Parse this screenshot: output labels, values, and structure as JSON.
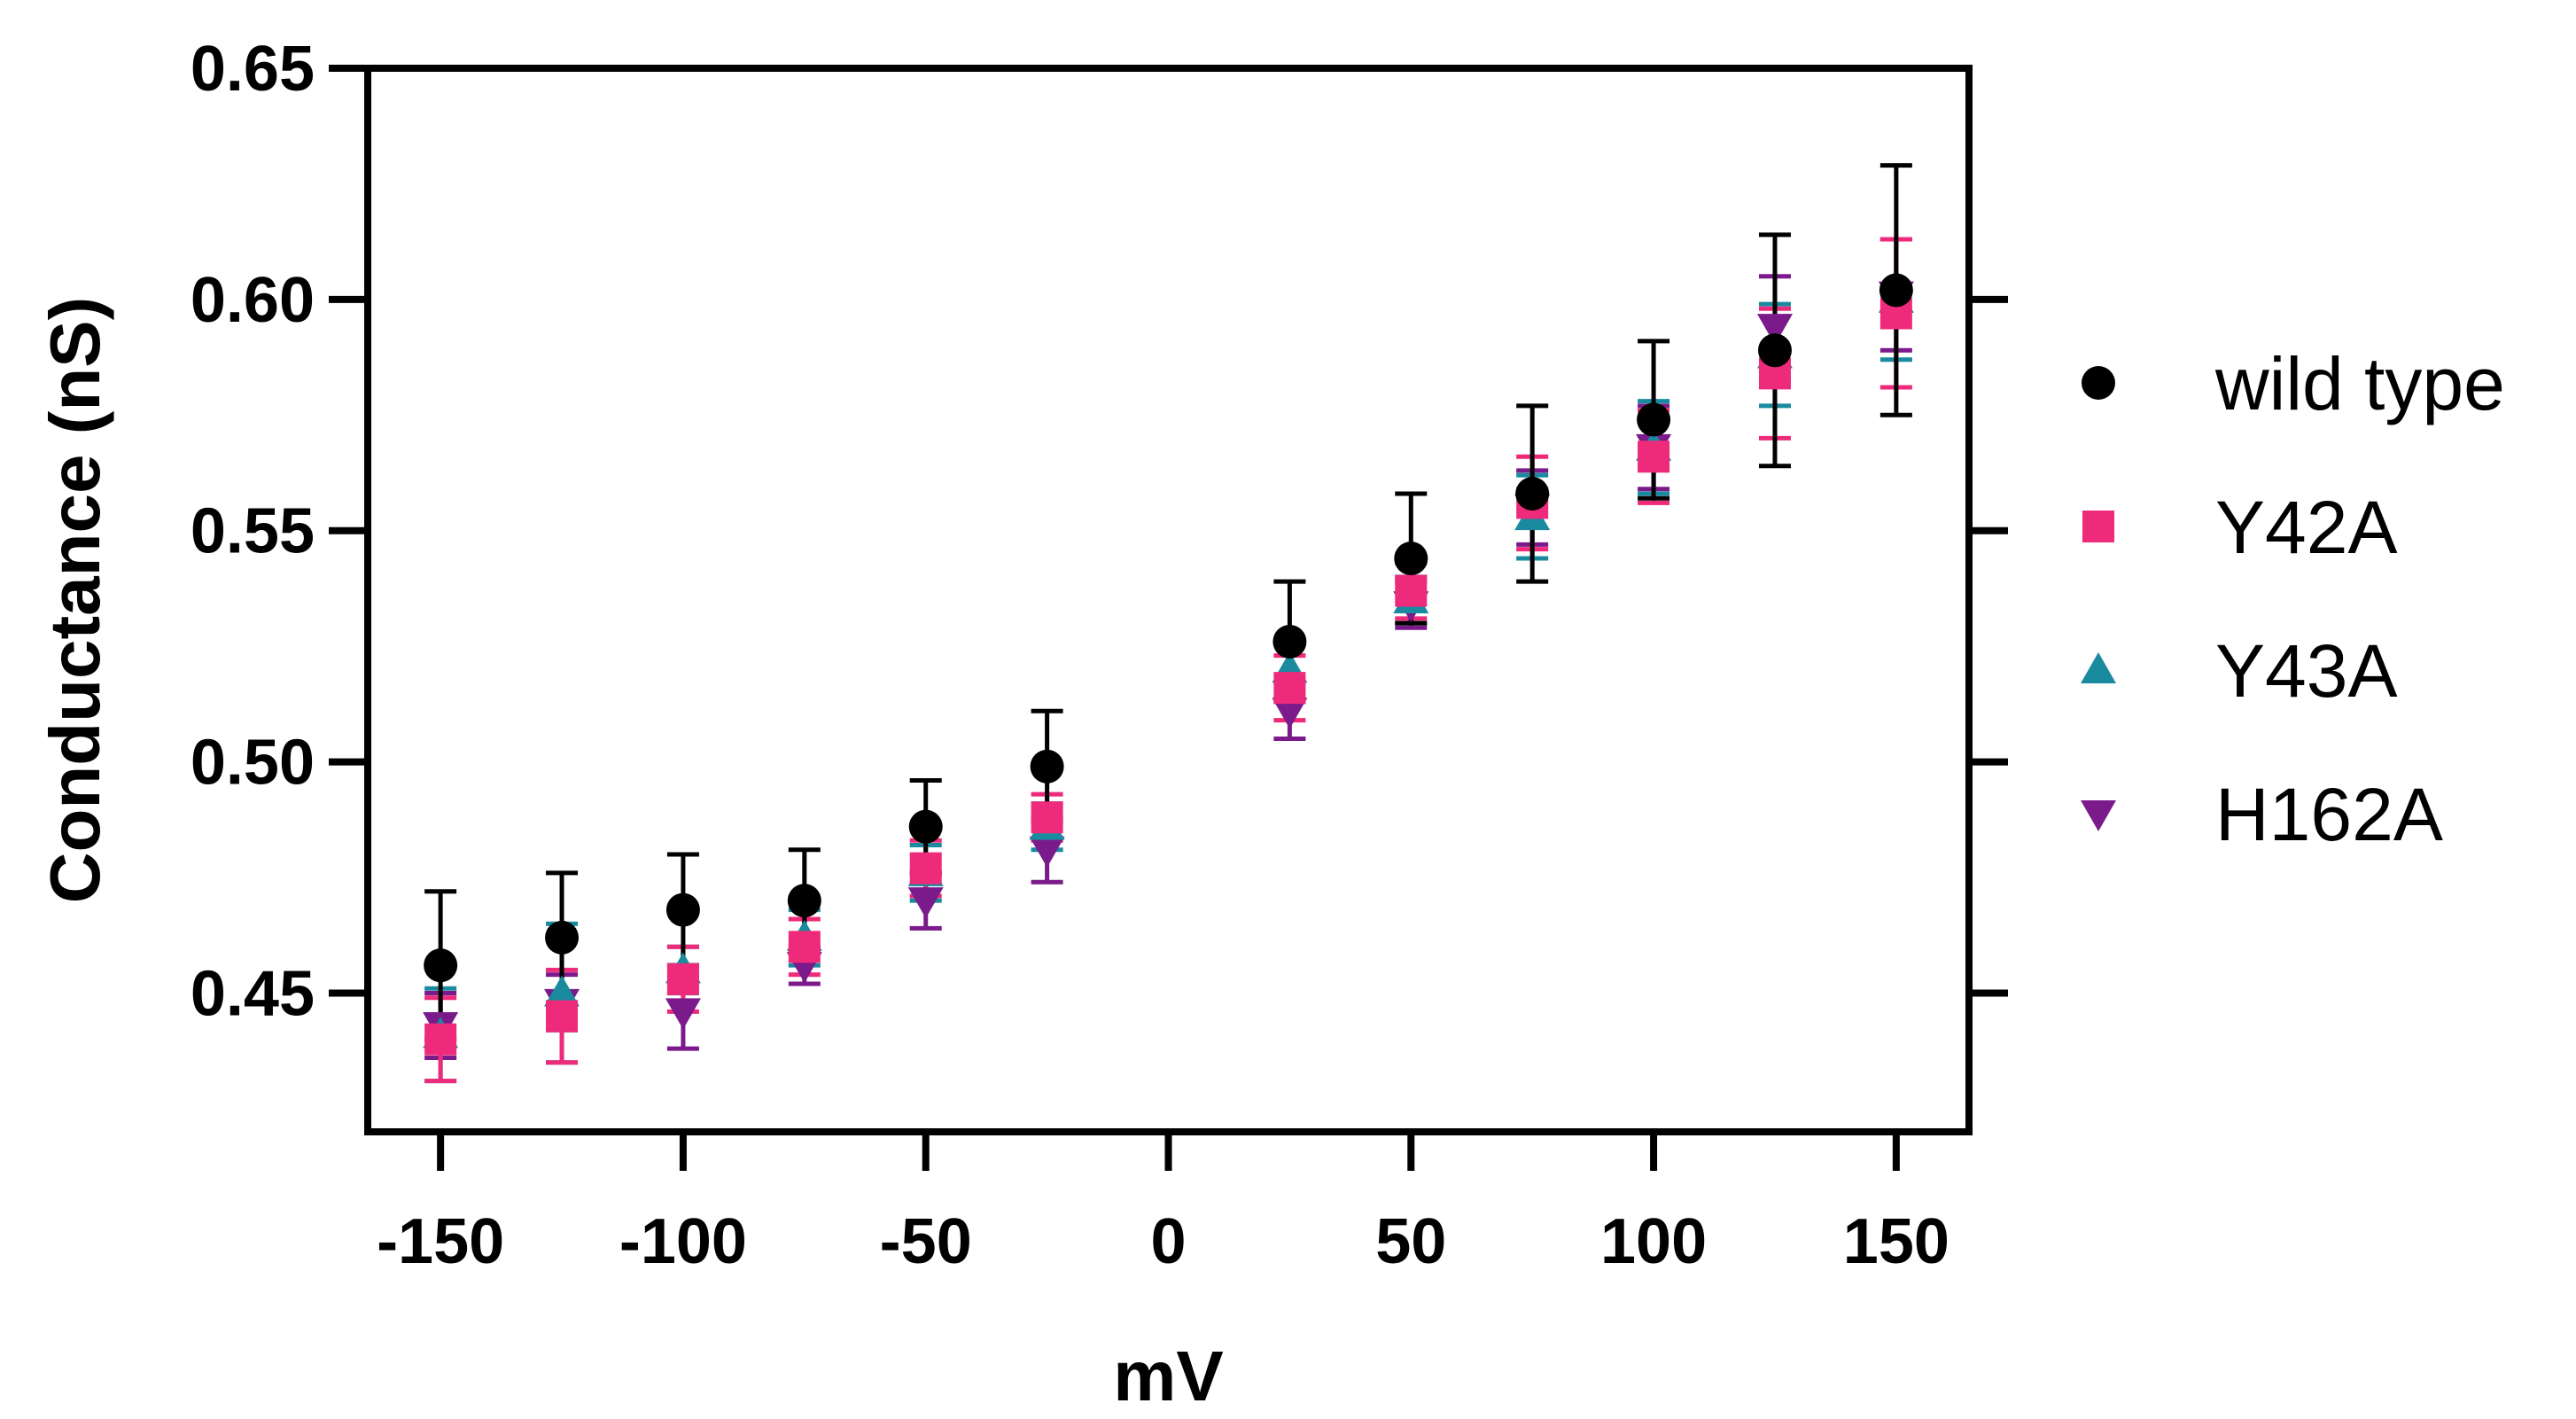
{
  "chart_data": {
    "type": "scatter",
    "title": "",
    "xlabel": "mV",
    "ylabel": "Conductance (nS)",
    "xlim": [
      -165,
      165
    ],
    "ylim": [
      0.42,
      0.65
    ],
    "x_ticks": [
      -150,
      -100,
      -50,
      0,
      50,
      100,
      150
    ],
    "y_ticks": [
      0.45,
      0.5,
      0.55,
      0.6,
      0.65
    ],
    "x_tick_labels": [
      "-150",
      "-100",
      "-50",
      "0",
      "50",
      "100",
      "150"
    ],
    "y_tick_labels": [
      "0.45",
      "0.50",
      "0.55",
      "0.60",
      "0.65"
    ],
    "grid": false,
    "legend_position": "right",
    "series": [
      {
        "name": "wild type",
        "marker": "circle",
        "color": "#000000",
        "x": [
          -150,
          -125,
          -100,
          -75,
          -50,
          -25,
          25,
          50,
          75,
          100,
          125,
          150
        ],
        "y": [
          0.456,
          0.462,
          0.468,
          0.47,
          0.486,
          0.499,
          0.526,
          0.544,
          0.558,
          0.574,
          0.589,
          0.602
        ],
        "error": [
          0.016,
          0.014,
          0.012,
          0.011,
          0.01,
          0.012,
          0.013,
          0.014,
          0.019,
          0.017,
          0.025,
          0.027
        ]
      },
      {
        "name": "Y42A",
        "marker": "square",
        "color": "#ee2a7b",
        "x": [
          -150,
          -125,
          -100,
          -75,
          -50,
          -25,
          25,
          50,
          75,
          100,
          125,
          150
        ],
        "y": [
          0.44,
          0.445,
          0.453,
          0.46,
          0.477,
          0.488,
          0.516,
          0.537,
          0.556,
          0.566,
          0.584,
          0.597
        ],
        "error": [
          0.009,
          0.01,
          0.007,
          0.006,
          0.006,
          0.005,
          0.007,
          0.006,
          0.01,
          0.01,
          0.014,
          0.016
        ]
      },
      {
        "name": "Y43A",
        "marker": "triangle-up",
        "color": "#1a8a9e",
        "x": [
          -150,
          -125,
          -100,
          -75,
          -50,
          -25,
          25,
          50,
          75,
          100,
          125,
          150
        ],
        "y": [
          0.441,
          0.45,
          0.455,
          0.462,
          0.476,
          0.486,
          0.52,
          0.535,
          0.553,
          0.568,
          0.588,
          0.6
        ],
        "error": [
          0.01,
          0.015,
          0.005,
          0.006,
          0.006,
          0.005,
          0.006,
          0.005,
          0.009,
          0.01,
          0.011,
          0.013
        ]
      },
      {
        "name": "H162A",
        "marker": "triangle-down",
        "color": "#7b1a8a",
        "x": [
          -150,
          -125,
          -100,
          -75,
          -50,
          -25,
          25,
          50,
          75,
          100,
          125,
          150
        ],
        "y": [
          0.443,
          0.448,
          0.446,
          0.456,
          0.47,
          0.481,
          0.511,
          0.534,
          0.555,
          0.568,
          0.594,
          0.601
        ],
        "error": [
          0.007,
          0.006,
          0.008,
          0.004,
          0.006,
          0.007,
          0.006,
          0.005,
          0.008,
          0.009,
          0.011,
          0.012
        ]
      }
    ]
  }
}
